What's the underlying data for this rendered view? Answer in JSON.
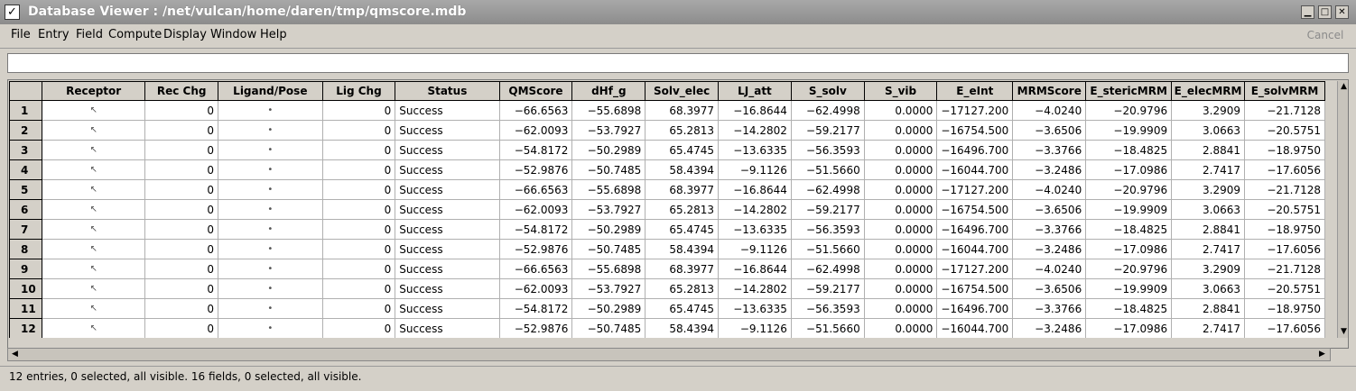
{
  "window": {
    "title": "Database Viewer : /net/vulcan/home/daren/tmp/qmscore.mdb",
    "icon": "app-logo-icon"
  },
  "menu": [
    "File",
    "Entry",
    "Field",
    "Compute",
    "Display",
    "Window",
    "Help"
  ],
  "toolbar": {
    "cancel_label": "Cancel",
    "cancel_enabled": false
  },
  "filter": {
    "value": "",
    "placeholder": ""
  },
  "table": {
    "columns": [
      "Receptor",
      "Rec Chg",
      "Ligand/Pose",
      "Lig Chg",
      "Status",
      "QMScore",
      "dHf_g",
      "Solv_elec",
      "LJ_att",
      "S_solv",
      "S_vib",
      "E_eInt",
      "MRMScore",
      "E_stericMRM",
      "E_elecMRM",
      "E_solvMRM"
    ],
    "rows": [
      {
        "n": "1",
        "rec_chg": "0",
        "lig_chg": "0",
        "status": "Success",
        "values": [
          "−66.6563",
          "−55.6898",
          "68.3977",
          "−16.8644",
          "−62.4998",
          "0.0000",
          "−17127.200",
          "−4.0240",
          "−20.9796",
          "3.2909",
          "−21.7128"
        ]
      },
      {
        "n": "2",
        "rec_chg": "0",
        "lig_chg": "0",
        "status": "Success",
        "values": [
          "−62.0093",
          "−53.7927",
          "65.2813",
          "−14.2802",
          "−59.2177",
          "0.0000",
          "−16754.500",
          "−3.6506",
          "−19.9909",
          "3.0663",
          "−20.5751"
        ]
      },
      {
        "n": "3",
        "rec_chg": "0",
        "lig_chg": "0",
        "status": "Success",
        "values": [
          "−54.8172",
          "−50.2989",
          "65.4745",
          "−13.6335",
          "−56.3593",
          "0.0000",
          "−16496.700",
          "−3.3766",
          "−18.4825",
          "2.8841",
          "−18.9750"
        ]
      },
      {
        "n": "4",
        "rec_chg": "0",
        "lig_chg": "0",
        "status": "Success",
        "values": [
          "−52.9876",
          "−50.7485",
          "58.4394",
          "−9.1126",
          "−51.5660",
          "0.0000",
          "−16044.700",
          "−3.2486",
          "−17.0986",
          "2.7417",
          "−17.6056"
        ]
      },
      {
        "n": "5",
        "rec_chg": "0",
        "lig_chg": "0",
        "status": "Success",
        "values": [
          "−66.6563",
          "−55.6898",
          "68.3977",
          "−16.8644",
          "−62.4998",
          "0.0000",
          "−17127.200",
          "−4.0240",
          "−20.9796",
          "3.2909",
          "−21.7128"
        ]
      },
      {
        "n": "6",
        "rec_chg": "0",
        "lig_chg": "0",
        "status": "Success",
        "values": [
          "−62.0093",
          "−53.7927",
          "65.2813",
          "−14.2802",
          "−59.2177",
          "0.0000",
          "−16754.500",
          "−3.6506",
          "−19.9909",
          "3.0663",
          "−20.5751"
        ]
      },
      {
        "n": "7",
        "rec_chg": "0",
        "lig_chg": "0",
        "status": "Success",
        "values": [
          "−54.8172",
          "−50.2989",
          "65.4745",
          "−13.6335",
          "−56.3593",
          "0.0000",
          "−16496.700",
          "−3.3766",
          "−18.4825",
          "2.8841",
          "−18.9750"
        ]
      },
      {
        "n": "8",
        "rec_chg": "0",
        "lig_chg": "0",
        "status": "Success",
        "values": [
          "−52.9876",
          "−50.7485",
          "58.4394",
          "−9.1126",
          "−51.5660",
          "0.0000",
          "−16044.700",
          "−3.2486",
          "−17.0986",
          "2.7417",
          "−17.6056"
        ]
      },
      {
        "n": "9",
        "rec_chg": "0",
        "lig_chg": "0",
        "status": "Success",
        "values": [
          "−66.6563",
          "−55.6898",
          "68.3977",
          "−16.8644",
          "−62.4998",
          "0.0000",
          "−17127.200",
          "−4.0240",
          "−20.9796",
          "3.2909",
          "−21.7128"
        ]
      },
      {
        "n": "10",
        "rec_chg": "0",
        "lig_chg": "0",
        "status": "Success",
        "values": [
          "−62.0093",
          "−53.7927",
          "65.2813",
          "−14.2802",
          "−59.2177",
          "0.0000",
          "−16754.500",
          "−3.6506",
          "−19.9909",
          "3.0663",
          "−20.5751"
        ]
      },
      {
        "n": "11",
        "rec_chg": "0",
        "lig_chg": "0",
        "status": "Success",
        "values": [
          "−54.8172",
          "−50.2989",
          "65.4745",
          "−13.6335",
          "−56.3593",
          "0.0000",
          "−16496.700",
          "−3.3766",
          "−18.4825",
          "2.8841",
          "−18.9750"
        ]
      },
      {
        "n": "12",
        "rec_chg": "0",
        "lig_chg": "0",
        "status": "Success",
        "values": [
          "−52.9876",
          "−50.7485",
          "58.4394",
          "−9.1126",
          "−51.5660",
          "0.0000",
          "−16044.700",
          "−3.2486",
          "−17.0986",
          "2.7417",
          "−17.6056"
        ]
      }
    ]
  },
  "statusbar": {
    "text": "12 entries, 0 selected, all visible. 16 fields, 0 selected, all visible."
  },
  "colors": {
    "titlebar": "#9a9a9a",
    "chrome": "#d4d0c8",
    "cell": "#ffffff"
  }
}
